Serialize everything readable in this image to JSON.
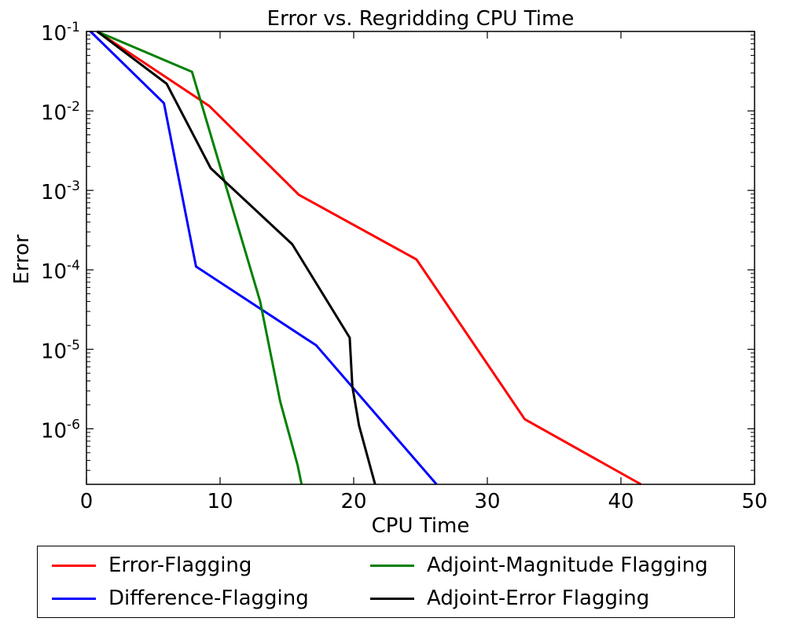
{
  "chart_data": {
    "type": "line",
    "title": "Error vs. Regridding CPU Time",
    "xlabel": "CPU Time",
    "ylabel": "Error",
    "xlim": [
      0,
      50
    ],
    "ylim": [
      2e-07,
      0.1
    ],
    "yscale": "log",
    "xticks": [
      0,
      10,
      20,
      30,
      40,
      50
    ],
    "yticks": [
      {
        "value": 0.1,
        "base": "10",
        "exp": "-1"
      },
      {
        "value": 0.01,
        "base": "10",
        "exp": "-2"
      },
      {
        "value": 0.001,
        "base": "10",
        "exp": "-3"
      },
      {
        "value": 0.0001,
        "base": "10",
        "exp": "-4"
      },
      {
        "value": 1e-05,
        "base": "10",
        "exp": "-5"
      },
      {
        "value": 1e-06,
        "base": "10",
        "exp": "-6"
      }
    ],
    "grid": false,
    "legend_position": "below",
    "series": [
      {
        "name": "Error-Flagging",
        "color": "#ff0000",
        "x": [
          0.8,
          9.2,
          15.9,
          24.7,
          32.8,
          41.5
        ],
        "y": [
          0.1,
          0.0115,
          0.00088,
          0.000135,
          1.32e-06,
          2e-07
        ]
      },
      {
        "name": "Difference-Flagging",
        "color": "#0000ff",
        "x": [
          0.3,
          5.8,
          8.2,
          17.2,
          26.2
        ],
        "y": [
          0.1,
          0.0125,
          0.00011,
          1.12e-05,
          2e-07
        ]
      },
      {
        "name": "Adjoint-Magnitude Flagging",
        "color": "#008000",
        "x": [
          0.8,
          7.9,
          13.0,
          14.5,
          15.8,
          16.1
        ],
        "y": [
          0.1,
          0.031,
          4e-05,
          2.2e-06,
          3.5e-07,
          2e-07
        ]
      },
      {
        "name": "Adjoint-Error Flagging",
        "color": "#000000",
        "x": [
          0.8,
          6.0,
          9.3,
          15.4,
          19.7,
          19.9,
          20.4,
          21.6
        ],
        "y": [
          0.1,
          0.022,
          0.0019,
          0.00021,
          1.4e-05,
          3.4e-06,
          1.1e-06,
          2e-07
        ]
      }
    ]
  }
}
